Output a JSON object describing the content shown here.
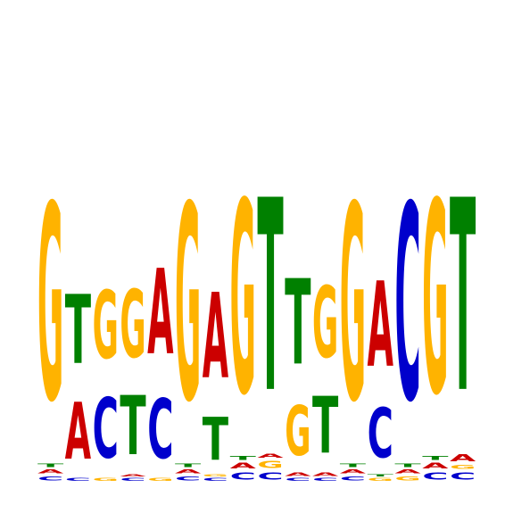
{
  "logo": {
    "type": "sequence-logo",
    "alphabet": [
      "A",
      "C",
      "G",
      "T"
    ],
    "colors": {
      "A": "#cc0000",
      "C": "#0000cc",
      "G": "#ffb300",
      "T": "#008000"
    },
    "columns": [
      [
        {
          "b": "C",
          "h": 0.06
        },
        {
          "b": "A",
          "h": 0.06
        },
        {
          "b": "T",
          "h": 0.05
        },
        {
          "b": "G",
          "h": 2.75
        }
      ],
      [
        {
          "b": "C",
          "h": 0.04
        },
        {
          "b": "A",
          "h": 0.8
        },
        {
          "b": "T",
          "h": 0.97
        }
      ],
      [
        {
          "b": "G",
          "h": 0.04
        },
        {
          "b": "C",
          "h": 0.85
        },
        {
          "b": "G",
          "h": 0.95
        }
      ],
      [
        {
          "b": "C",
          "h": 0.04
        },
        {
          "b": "A",
          "h": 0.03
        },
        {
          "b": "T",
          "h": 0.83
        },
        {
          "b": "G",
          "h": 0.95
        }
      ],
      [
        {
          "b": "G",
          "h": 0.04
        },
        {
          "b": "C",
          "h": 0.84
        },
        {
          "b": "A",
          "h": 1.2
        }
      ],
      [
        {
          "b": "C",
          "h": 0.06
        },
        {
          "b": "A",
          "h": 0.06
        },
        {
          "b": "T",
          "h": 0.05
        },
        {
          "b": "G",
          "h": 2.75
        }
      ],
      [
        {
          "b": "C",
          "h": 0.04
        },
        {
          "b": "G",
          "h": 0.03
        },
        {
          "b": "T",
          "h": 0.6
        },
        {
          "b": "A",
          "h": 1.2
        }
      ],
      [
        {
          "b": "C",
          "h": 0.1
        },
        {
          "b": "A",
          "h": 0.08
        },
        {
          "b": "T",
          "h": 0.06
        },
        {
          "b": "G",
          "h": 2.7
        }
      ],
      [
        {
          "b": "C",
          "h": 0.1
        },
        {
          "b": "G",
          "h": 0.1
        },
        {
          "b": "A",
          "h": 0.06
        },
        {
          "b": "T",
          "h": 2.7
        }
      ],
      [
        {
          "b": "C",
          "h": 0.04
        },
        {
          "b": "A",
          "h": 0.05
        },
        {
          "b": "G",
          "h": 0.7
        },
        {
          "b": "T",
          "h": 1.2
        }
      ],
      [
        {
          "b": "C",
          "h": 0.04
        },
        {
          "b": "A",
          "h": 0.05
        },
        {
          "b": "T",
          "h": 0.8
        },
        {
          "b": "G",
          "h": 1.0
        }
      ],
      [
        {
          "b": "C",
          "h": 0.06
        },
        {
          "b": "A",
          "h": 0.06
        },
        {
          "b": "T",
          "h": 0.05
        },
        {
          "b": "G",
          "h": 2.75
        }
      ],
      [
        {
          "b": "G",
          "h": 0.04
        },
        {
          "b": "T",
          "h": 0.03
        },
        {
          "b": "C",
          "h": 0.7
        },
        {
          "b": "A",
          "h": 1.2
        }
      ],
      [
        {
          "b": "G",
          "h": 0.06
        },
        {
          "b": "A",
          "h": 0.06
        },
        {
          "b": "T",
          "h": 0.05
        },
        {
          "b": "C",
          "h": 2.75
        }
      ],
      [
        {
          "b": "C",
          "h": 0.1
        },
        {
          "b": "A",
          "h": 0.08
        },
        {
          "b": "T",
          "h": 0.06
        },
        {
          "b": "G",
          "h": 2.7
        }
      ],
      [
        {
          "b": "C",
          "h": 0.1
        },
        {
          "b": "G",
          "h": 0.06
        },
        {
          "b": "A",
          "h": 0.1
        },
        {
          "b": "T",
          "h": 2.7
        }
      ]
    ]
  }
}
